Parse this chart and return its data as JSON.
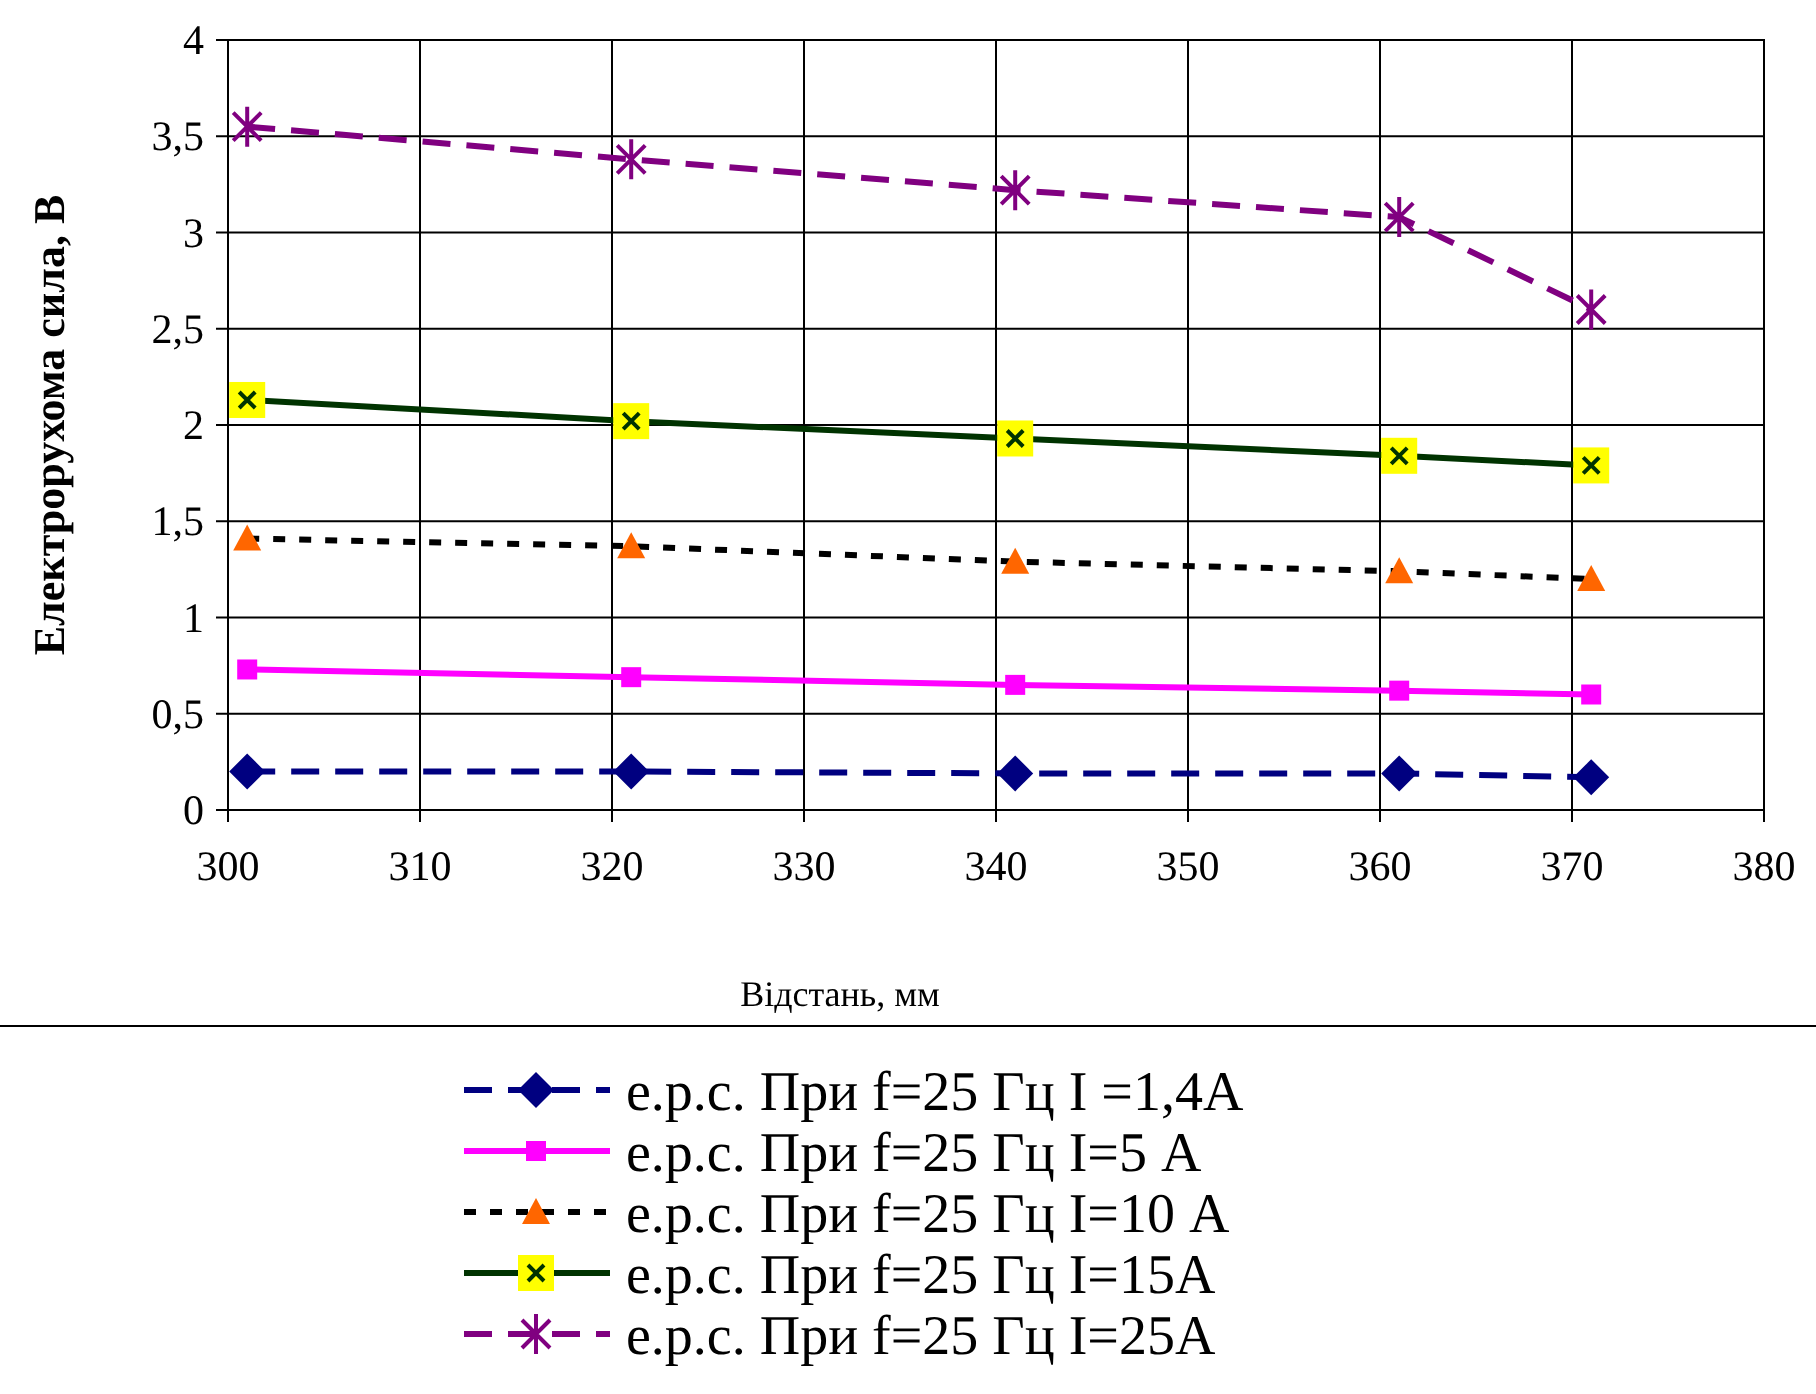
{
  "chart_data": {
    "type": "line",
    "xlabel": "Відстань, мм",
    "ylabel": "Електрорухома сила, В",
    "x": [
      301,
      321,
      341,
      361,
      371
    ],
    "xlim": [
      300,
      380
    ],
    "xticks": [
      300,
      310,
      320,
      330,
      340,
      350,
      360,
      370,
      380
    ],
    "ylim": [
      0,
      4
    ],
    "yticks": [
      0,
      {
        "value": 0.5,
        "label": "0,5"
      },
      1,
      {
        "value": 1.5,
        "label": "1,5"
      },
      2,
      {
        "value": 2.5,
        "label": "2,5"
      },
      3,
      {
        "value": 3.5,
        "label": "3,5"
      },
      4
    ],
    "grid": true,
    "legend": "bottom",
    "series": [
      {
        "name": "е.р.с. При f=25 Гц I =1,4А",
        "color": "#000080",
        "colors": [
          "#000080",
          "#000080",
          "#000080",
          "#000080",
          "#000080"
        ],
        "marker": "diamond",
        "line_style": "dashed",
        "values": [
          0.2,
          0.2,
          0.19,
          0.19,
          0.17
        ]
      },
      {
        "name": "е.р.с. При f=25 Гц I=5 А",
        "color": "#ff00ff",
        "colors": [
          "#ff00ff",
          "#ff00ff",
          "#ff00ff",
          "#ff00ff",
          "#ff00ff"
        ],
        "marker": "square",
        "line_style": "solid",
        "values": [
          0.73,
          0.69,
          0.65,
          0.62,
          0.6
        ]
      },
      {
        "name": "е.р.с. При f=25 Гц I=10 А",
        "color": "#000000",
        "colors": [
          "#ff6600",
          "#ff6600",
          "#ff6600",
          "#ff6600",
          "#ff6600"
        ],
        "marker": "triangle",
        "line_style": "dotted",
        "values": [
          1.41,
          1.37,
          1.29,
          1.24,
          1.2
        ]
      },
      {
        "name": "е.р.с. При f=25 Гц I=15А",
        "color": "#003300",
        "colors": [
          "#ffff00",
          "#ffff00",
          "#ffff00",
          "#ffff00",
          "#ffff00"
        ],
        "marker": "square",
        "line_style": "solid",
        "values": [
          2.13,
          2.02,
          1.93,
          1.84,
          1.79
        ]
      },
      {
        "name": "е.р.с. При f=25 Гц I=25А",
        "color": "#800080",
        "colors": [
          "#800080",
          "#800080",
          "#800080",
          "#800080",
          "#800080"
        ],
        "marker": "cross",
        "line_style": "dashed",
        "values": [
          3.55,
          3.38,
          3.22,
          3.08,
          2.6
        ]
      }
    ]
  }
}
